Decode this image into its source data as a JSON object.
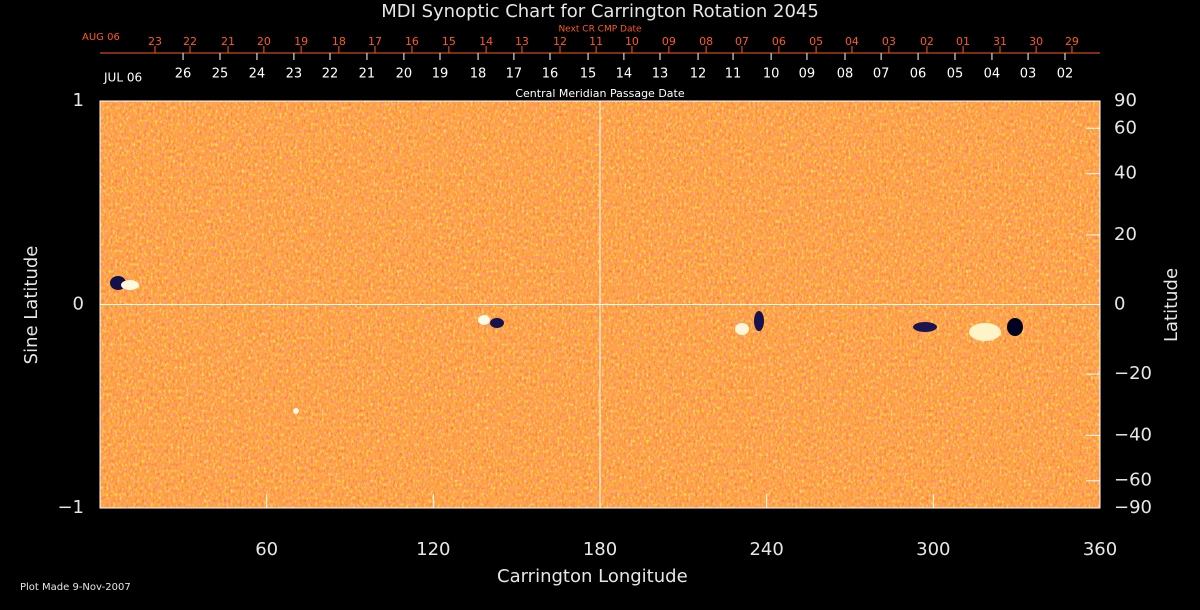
{
  "chart_data": {
    "type": "synoptic_map",
    "title": "MDI Synoptic Chart for Carrington Rotation 2045",
    "xlabel": "Carrington Longitude",
    "ylabel": "Sine Latitude",
    "y2label": "Latitude",
    "xlim": [
      0,
      360
    ],
    "xticks": [
      60,
      120,
      180,
      240,
      300,
      360
    ],
    "ylim": [
      -1,
      1
    ],
    "yticks": [
      {
        "value": -1,
        "label": "−1"
      },
      0,
      1
    ],
    "y2lim": [
      -90,
      90
    ],
    "y2scale": "sine",
    "y2ticks": [
      90,
      60,
      40,
      20,
      0,
      {
        "value": -20,
        "label": "−20"
      },
      {
        "value": -40,
        "label": "−40"
      },
      {
        "value": -60,
        "label": "−60"
      },
      {
        "value": -90,
        "label": "−90"
      }
    ],
    "x_reference": 180,
    "y_reference": 0,
    "top_axes": [
      {
        "label": "Next CR CMP Date",
        "start_label": "AUG 06",
        "color": "#ff5a1e",
        "ticks": [
          {
            "value": 19.8,
            "label": "23"
          },
          {
            "value": 32.4,
            "label": "22"
          },
          {
            "value": 46.1,
            "label": "21"
          },
          {
            "value": 59.0,
            "label": "20"
          },
          {
            "value": 72.4,
            "label": "19"
          },
          {
            "value": 86.0,
            "label": "18"
          },
          {
            "value": 99.0,
            "label": "17"
          },
          {
            "value": 112.3,
            "label": "16"
          },
          {
            "value": 125.6,
            "label": "15"
          },
          {
            "value": 139.0,
            "label": "14"
          },
          {
            "value": 151.9,
            "label": "13"
          },
          {
            "value": 165.6,
            "label": "12"
          },
          {
            "value": 178.6,
            "label": "11"
          },
          {
            "value": 191.5,
            "label": "10"
          },
          {
            "value": 204.8,
            "label": "09"
          },
          {
            "value": 218.2,
            "label": "08"
          },
          {
            "value": 231.1,
            "label": "07"
          },
          {
            "value": 244.4,
            "label": "06"
          },
          {
            "value": 257.8,
            "label": "05"
          },
          {
            "value": 270.7,
            "label": "04"
          },
          {
            "value": 284.0,
            "label": "03"
          },
          {
            "value": 297.7,
            "label": "02"
          },
          {
            "value": 310.7,
            "label": "01"
          },
          {
            "value": 324.0,
            "label": "31"
          },
          {
            "value": 337.0,
            "label": "30"
          },
          {
            "value": 349.9,
            "label": "29"
          }
        ]
      },
      {
        "label": "Central Meridian Passage Date",
        "start_label": "JUL 06",
        "color": "#ffffff",
        "ticks": [
          {
            "value": 29.9,
            "label": "26"
          },
          {
            "value": 43.2,
            "label": "25"
          },
          {
            "value": 56.5,
            "label": "24"
          },
          {
            "value": 69.8,
            "label": "23"
          },
          {
            "value": 82.8,
            "label": "22"
          },
          {
            "value": 96.1,
            "label": "21"
          },
          {
            "value": 109.4,
            "label": "20"
          },
          {
            "value": 122.4,
            "label": "19"
          },
          {
            "value": 136.1,
            "label": "18"
          },
          {
            "value": 149.0,
            "label": "17"
          },
          {
            "value": 162.0,
            "label": "16"
          },
          {
            "value": 175.7,
            "label": "15"
          },
          {
            "value": 188.6,
            "label": "14"
          },
          {
            "value": 201.6,
            "label": "13"
          },
          {
            "value": 215.3,
            "label": "12"
          },
          {
            "value": 227.9,
            "label": "11"
          },
          {
            "value": 241.6,
            "label": "10"
          },
          {
            "value": 254.5,
            "label": "09"
          },
          {
            "value": 268.2,
            "label": "08"
          },
          {
            "value": 281.2,
            "label": "07"
          },
          {
            "value": 294.5,
            "label": "06"
          },
          {
            "value": 307.8,
            "label": "05"
          },
          {
            "value": 321.1,
            "label": "04"
          },
          {
            "value": 334.1,
            "label": "03"
          },
          {
            "value": 347.4,
            "label": "02"
          }
        ]
      }
    ]
  },
  "footer": "Plot Made  9-Nov-2007"
}
